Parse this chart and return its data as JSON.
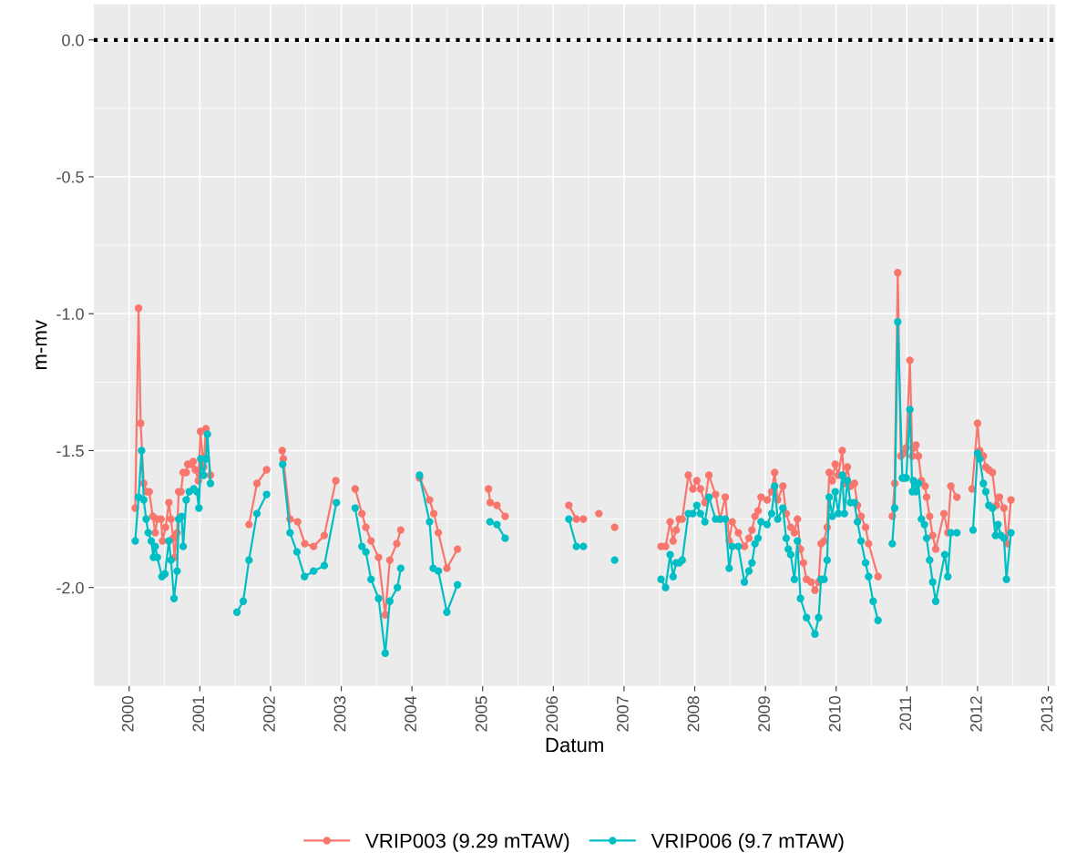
{
  "chart_data": {
    "type": "line",
    "xlabel": "Datum",
    "ylabel": "m-mv",
    "xlim": [
      1999.5,
      2013.1
    ],
    "xticks": [
      2000,
      2001,
      2002,
      2003,
      2004,
      2005,
      2006,
      2007,
      2008,
      2009,
      2010,
      2011,
      2012,
      2013
    ],
    "ylim": [
      -2.36,
      0.13
    ],
    "yticks": [
      {
        "value": -2,
        "label": "-2.0"
      },
      {
        "value": -1.5,
        "label": "-1.5"
      },
      {
        "value": -1,
        "label": "-1.0"
      },
      {
        "value": -0.5,
        "label": "-0.5"
      },
      {
        "value": 0,
        "label": "0.0"
      }
    ],
    "grid": true,
    "legend": "bottom",
    "marker": "circle",
    "line_style": "solid",
    "ref_lines": [
      {
        "axis": "y",
        "value": 0,
        "color": "#000000",
        "line_style": "dotted"
      }
    ],
    "series": [
      {
        "name": "VRIP003 (9.29 mTAW)",
        "color": "#f8766d",
        "x": [
          2000.086,
          2000.133,
          2000.163,
          2000.206,
          2000.249,
          2000.283,
          2000.335,
          2000.369,
          2000.399,
          2000.451,
          2000.472,
          2000.515,
          2000.562,
          2000.592,
          2000.622,
          2000.644,
          2000.678,
          2000.7,
          2000.734,
          2000.764,
          2000.807,
          2000.828,
          2000.871,
          2000.906,
          2000.936,
          2000.979,
          2001.009,
          2001.052,
          2001.086,
          2001.15,
          2001.3,
          2001.695,
          2001.807,
          2001.944,
          2002.05,
          2002.165,
          2002.18,
          2002.275,
          2002.382,
          2002.485,
          2002.609,
          2002.76,
          2002.923,
          2003.05,
          2003.197,
          2003.292,
          2003.348,
          2003.421,
          2003.528,
          2003.622,
          2003.687,
          2003.785,
          2003.841,
          2004.0,
          2004.107,
          2004.249,
          2004.309,
          2004.373,
          2004.494,
          2004.644,
          2004.9,
          2005.082,
          2005.107,
          2005.202,
          2005.318,
          2005.8,
          2006.219,
          2006.326,
          2006.425,
          2006.5,
          2006.644,
          2006.75,
          2006.867,
          2007.2,
          2007.523,
          2007.587,
          2007.652,
          2007.694,
          2007.737,
          2007.78,
          2007.823,
          2007.909,
          2007.973,
          2008.029,
          2008.08,
          2008.144,
          2008.2,
          2008.294,
          2008.359,
          2008.432,
          2008.487,
          2008.53,
          2008.616,
          2008.702,
          2008.766,
          2008.809,
          2008.852,
          2008.895,
          2008.937,
          2009.023,
          2009.087,
          2009.13,
          2009.173,
          2009.246,
          2009.293,
          2009.357,
          2009.409,
          2009.452,
          2009.495,
          2009.537,
          2009.58,
          2009.645,
          2009.7,
          2009.752,
          2009.786,
          2009.829,
          2009.872,
          2009.902,
          2009.945,
          2009.987,
          2010.03,
          2010.086,
          2010.116,
          2010.159,
          2010.202,
          2010.258,
          2010.301,
          2010.352,
          2010.416,
          2010.459,
          2010.592,
          2010.7,
          2010.794,
          2010.828,
          2010.871,
          2010.914,
          2010.957,
          2010.991,
          2011.043,
          2011.077,
          2011.094,
          2011.129,
          2011.163,
          2011.206,
          2011.258,
          2011.279,
          2011.322,
          2011.365,
          2011.408,
          2011.524,
          2011.579,
          2011.622,
          2011.708,
          2011.82,
          2011.923,
          2012.0,
          2012.03,
          2012.082,
          2012.116,
          2012.159,
          2012.21,
          2012.266,
          2012.309,
          2012.373,
          2012.416,
          2012.472
        ],
        "values": [
          -1.71,
          -0.98,
          -1.4,
          -1.62,
          -1.65,
          -1.65,
          -1.74,
          -1.8,
          -1.75,
          -1.75,
          -1.83,
          -1.78,
          -1.69,
          -1.75,
          -1.82,
          -1.89,
          -1.8,
          -1.65,
          -1.65,
          -1.58,
          -1.58,
          -1.55,
          -1.55,
          -1.54,
          -1.57,
          -1.61,
          -1.43,
          -1.56,
          -1.42,
          -1.59,
          null,
          -1.77,
          -1.62,
          -1.57,
          null,
          -1.5,
          -1.53,
          -1.75,
          -1.76,
          -1.84,
          -1.85,
          -1.81,
          -1.61,
          null,
          -1.64,
          -1.73,
          -1.78,
          -1.83,
          -1.89,
          -2.1,
          -1.9,
          -1.84,
          -1.79,
          null,
          -1.6,
          -1.68,
          -1.73,
          -1.8,
          -1.93,
          -1.86,
          null,
          -1.64,
          -1.69,
          -1.7,
          -1.74,
          null,
          -1.7,
          -1.75,
          -1.75,
          null,
          -1.73,
          null,
          -1.78,
          null,
          -1.85,
          -1.85,
          -1.76,
          -1.83,
          -1.79,
          -1.75,
          -1.75,
          -1.59,
          -1.64,
          -1.61,
          -1.64,
          -1.69,
          -1.59,
          -1.66,
          -1.75,
          -1.67,
          -1.83,
          -1.76,
          -1.8,
          -1.85,
          -1.82,
          -1.79,
          -1.74,
          -1.72,
          -1.67,
          -1.68,
          -1.65,
          -1.58,
          -1.68,
          -1.63,
          -1.73,
          -1.78,
          -1.8,
          -1.75,
          -1.86,
          -1.91,
          -1.97,
          -1.98,
          -2.01,
          -1.98,
          -1.84,
          -1.83,
          -1.78,
          -1.58,
          -1.61,
          -1.55,
          -1.59,
          -1.5,
          -1.62,
          -1.56,
          -1.63,
          -1.62,
          -1.7,
          -1.74,
          -1.78,
          -1.84,
          -1.96,
          null,
          -1.74,
          -1.62,
          -0.85,
          -1.52,
          -1.51,
          -1.49,
          -1.17,
          -1.52,
          -1.49,
          -1.48,
          -1.52,
          -1.61,
          -1.63,
          -1.67,
          -1.74,
          -1.81,
          -1.86,
          -1.73,
          -1.8,
          -1.63,
          -1.67,
          null,
          -1.64,
          -1.4,
          -1.5,
          -1.52,
          -1.56,
          -1.57,
          -1.58,
          -1.7,
          -1.67,
          -1.71,
          -1.84,
          -1.68
        ]
      },
      {
        "name": "VRIP006 (9.7 mTAW)",
        "color": "#00bfc4",
        "x": [
          2000.086,
          2000.133,
          2000.176,
          2000.206,
          2000.24,
          2000.27,
          2000.313,
          2000.343,
          2000.369,
          2000.399,
          2000.464,
          2000.506,
          2000.562,
          2000.592,
          2000.635,
          2000.678,
          2000.7,
          2000.743,
          2000.764,
          2000.807,
          2000.85,
          2000.914,
          2000.957,
          2000.987,
          2001.013,
          2001.052,
          2001.086,
          2001.107,
          2001.15,
          2001.3,
          2001.524,
          2001.614,
          2001.695,
          2001.807,
          2001.944,
          2002.05,
          2002.172,
          2002.275,
          2002.373,
          2002.48,
          2002.609,
          2002.76,
          2002.931,
          2003.05,
          2003.197,
          2003.292,
          2003.348,
          2003.421,
          2003.528,
          2003.622,
          2003.687,
          2003.794,
          2003.841,
          2004.0,
          2004.107,
          2004.249,
          2004.3,
          2004.373,
          2004.494,
          2004.644,
          2004.9,
          2005.103,
          2005.202,
          2005.318,
          2005.8,
          2006.219,
          2006.326,
          2006.425,
          2006.6,
          2006.867,
          2007.2,
          2007.523,
          2007.587,
          2007.652,
          2007.694,
          2007.737,
          2007.78,
          2007.823,
          2007.909,
          2007.973,
          2008.029,
          2008.08,
          2008.144,
          2008.2,
          2008.294,
          2008.359,
          2008.432,
          2008.487,
          2008.53,
          2008.616,
          2008.702,
          2008.766,
          2008.809,
          2008.852,
          2008.895,
          2008.937,
          2009.023,
          2009.087,
          2009.13,
          2009.173,
          2009.246,
          2009.293,
          2009.323,
          2009.357,
          2009.409,
          2009.452,
          2009.495,
          2009.58,
          2009.7,
          2009.752,
          2009.786,
          2009.829,
          2009.872,
          2009.902,
          2009.945,
          2009.987,
          2010.03,
          2010.086,
          2010.116,
          2010.159,
          2010.202,
          2010.258,
          2010.301,
          2010.352,
          2010.416,
          2010.459,
          2010.523,
          2010.592,
          2010.7,
          2010.794,
          2010.828,
          2010.871,
          2010.936,
          2010.957,
          2010.991,
          2011.043,
          2011.077,
          2011.094,
          2011.129,
          2011.163,
          2011.206,
          2011.249,
          2011.279,
          2011.322,
          2011.365,
          2011.408,
          2011.536,
          2011.579,
          2011.622,
          2011.708,
          2011.82,
          2011.936,
          2012.0,
          2012.03,
          2012.082,
          2012.116,
          2012.159,
          2012.21,
          2012.253,
          2012.288,
          2012.33,
          2012.373,
          2012.408,
          2012.472
        ],
        "values": [
          -1.83,
          -1.67,
          -1.5,
          -1.68,
          -1.75,
          -1.8,
          -1.83,
          -1.89,
          -1.85,
          -1.89,
          -1.96,
          -1.95,
          -1.83,
          -1.9,
          -2.04,
          -1.94,
          -1.75,
          -1.74,
          -1.85,
          -1.68,
          -1.65,
          -1.64,
          -1.65,
          -1.71,
          -1.53,
          -1.59,
          -1.53,
          -1.44,
          -1.62,
          null,
          -2.09,
          -2.05,
          -1.9,
          -1.73,
          -1.66,
          null,
          -1.55,
          -1.8,
          -1.87,
          -1.96,
          -1.94,
          -1.92,
          -1.69,
          null,
          -1.71,
          -1.85,
          -1.87,
          -1.97,
          -2.04,
          -2.24,
          -2.05,
          -2.0,
          -1.93,
          null,
          -1.59,
          -1.76,
          -1.93,
          -1.94,
          -2.09,
          -1.99,
          null,
          -1.76,
          -1.77,
          -1.82,
          null,
          -1.75,
          -1.85,
          -1.85,
          null,
          -1.9,
          null,
          -1.97,
          -2.0,
          -1.88,
          -1.96,
          -1.91,
          -1.91,
          -1.9,
          -1.73,
          -1.73,
          -1.7,
          -1.73,
          -1.76,
          -1.67,
          -1.75,
          -1.75,
          -1.75,
          -1.93,
          -1.85,
          -1.85,
          -1.98,
          -1.94,
          -1.91,
          -1.84,
          -1.82,
          -1.76,
          -1.77,
          -1.73,
          -1.63,
          -1.75,
          -1.71,
          -1.82,
          -1.86,
          -1.88,
          -1.97,
          -1.83,
          -2.04,
          -2.11,
          -2.17,
          -2.11,
          -1.97,
          -1.97,
          -1.9,
          -1.67,
          -1.74,
          -1.65,
          -1.73,
          -1.59,
          -1.73,
          -1.61,
          -1.69,
          -1.69,
          -1.76,
          -1.83,
          -1.91,
          -1.96,
          -2.05,
          -2.12,
          null,
          -1.84,
          -1.71,
          -1.03,
          -1.6,
          -1.6,
          -1.6,
          -1.35,
          -1.65,
          -1.61,
          -1.65,
          -1.62,
          -1.75,
          -1.77,
          -1.82,
          -1.9,
          -1.98,
          -2.05,
          -1.88,
          -1.96,
          -1.8,
          -1.8,
          null,
          -1.79,
          -1.51,
          -1.53,
          -1.62,
          -1.65,
          -1.7,
          -1.71,
          -1.81,
          -1.77,
          -1.81,
          -1.82,
          -1.97,
          -1.8
        ]
      }
    ]
  }
}
